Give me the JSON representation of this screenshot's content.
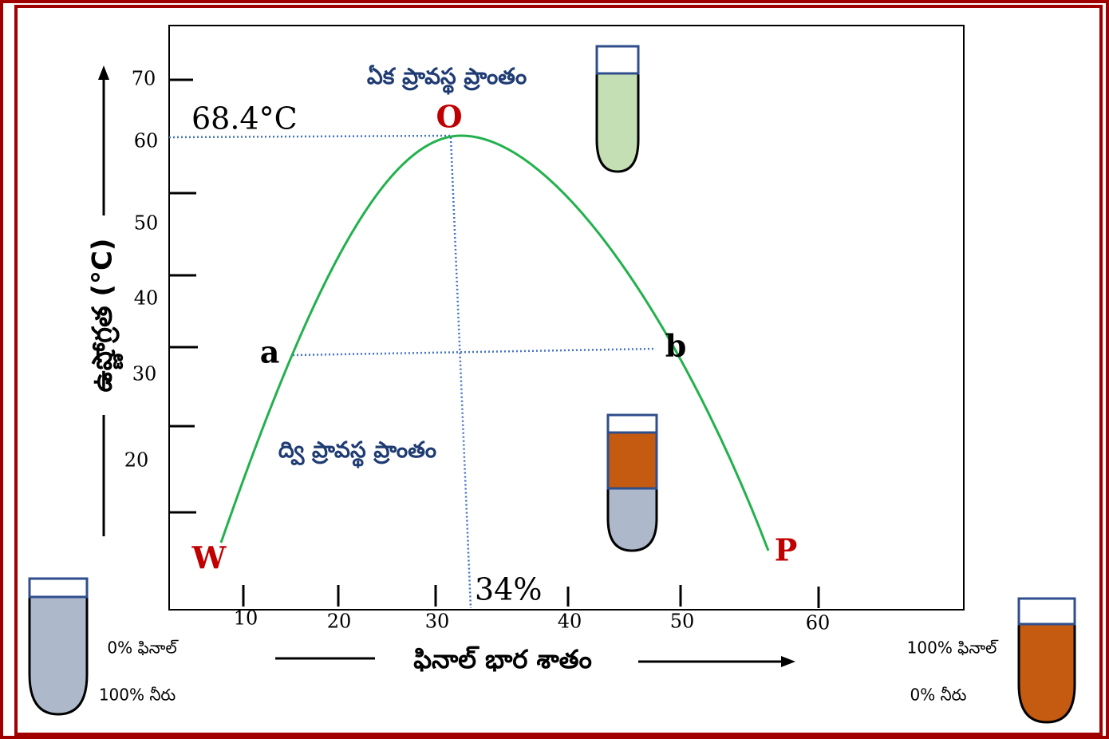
{
  "regions": {
    "single_phase": "ఏక ప్రావస్థ ప్రాంతం",
    "two_phase": "ద్వి ప్రావస్థ ప్రాంతం"
  },
  "y_axis": {
    "title": "ఉష్ణోగ్రత (°C)",
    "tick_labels": [
      "70",
      "60",
      "50",
      "40",
      "30",
      "20"
    ]
  },
  "x_axis": {
    "title": "ఫినాల్ భార శాతం",
    "tick_labels": [
      "10",
      "20",
      "30",
      "40",
      "50",
      "60"
    ]
  },
  "annotations": {
    "critical_temperature": "68.4°C",
    "critical_composition": "34%"
  },
  "points": [
    "O",
    "a",
    "b",
    "W",
    "P"
  ],
  "left_tube": {
    "phenol": "0% ఫినాల్",
    "water": "100% నీరు"
  },
  "right_tube": {
    "phenol": "100% ఫినాల్",
    "water": "0% నీరు"
  }
}
